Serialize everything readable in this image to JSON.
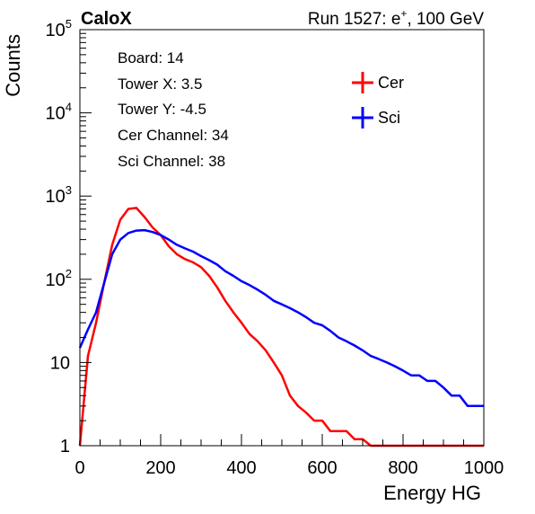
{
  "header": {
    "brand": "CaloX",
    "run_label": "Run 1527: e",
    "run_superscript": "+",
    "run_suffix": ", 100 GeV"
  },
  "info_box": [
    "Board: 14",
    "Tower X: 3.5",
    "Tower Y: -4.5",
    "Cer Channel: 34",
    "Sci Channel: 38"
  ],
  "chart_data": {
    "type": "line",
    "style": "histogram-step",
    "xlabel": "Energy HG",
    "ylabel": "Counts",
    "xlim": [
      0,
      1000
    ],
    "ylim": [
      1,
      100000
    ],
    "yscale": "log",
    "grid": false,
    "legend_position": "top-right",
    "x_ticks": [
      0,
      200,
      400,
      600,
      800,
      1000
    ],
    "y_ticks": [
      {
        "value": 1,
        "label": "1",
        "exp": ""
      },
      {
        "value": 10,
        "label": "10",
        "exp": ""
      },
      {
        "value": 100,
        "label": "10",
        "exp": "2"
      },
      {
        "value": 1000,
        "label": "10",
        "exp": "3"
      },
      {
        "value": 10000,
        "label": "10",
        "exp": "4"
      },
      {
        "value": 100000,
        "label": "10",
        "exp": "5"
      }
    ],
    "x": [
      0,
      20,
      40,
      60,
      80,
      100,
      120,
      140,
      160,
      180,
      200,
      220,
      240,
      260,
      280,
      300,
      320,
      340,
      360,
      380,
      400,
      420,
      440,
      460,
      480,
      500,
      520,
      540,
      560,
      580,
      600,
      620,
      640,
      660,
      680,
      700,
      720,
      740,
      760,
      780,
      800,
      820,
      840,
      860,
      880,
      900,
      920,
      940,
      960,
      980,
      1000
    ],
    "series": [
      {
        "name": "Cer",
        "color": "#ff0000",
        "values": [
          1,
          12,
          30,
          90,
          260,
          520,
          700,
          720,
          560,
          420,
          340,
          250,
          200,
          175,
          160,
          140,
          110,
          80,
          55,
          40,
          30,
          22,
          18,
          14,
          10,
          7,
          4,
          3,
          2.5,
          2,
          2,
          1.5,
          1.5,
          1.5,
          1.2,
          1.2,
          1,
          1,
          1,
          1,
          1,
          1,
          1,
          1,
          1,
          1,
          1,
          1,
          1,
          1,
          1
        ]
      },
      {
        "name": "Sci",
        "color": "#0000ff",
        "values": [
          15,
          25,
          40,
          90,
          200,
          300,
          360,
          385,
          390,
          370,
          340,
          300,
          260,
          235,
          215,
          190,
          170,
          150,
          125,
          110,
          95,
          85,
          75,
          65,
          55,
          50,
          45,
          40,
          35,
          30,
          28,
          24,
          20,
          18,
          16,
          14,
          12,
          11,
          10,
          9,
          8,
          7,
          7,
          6,
          6,
          5,
          4,
          4,
          3,
          3,
          3
        ]
      }
    ]
  }
}
